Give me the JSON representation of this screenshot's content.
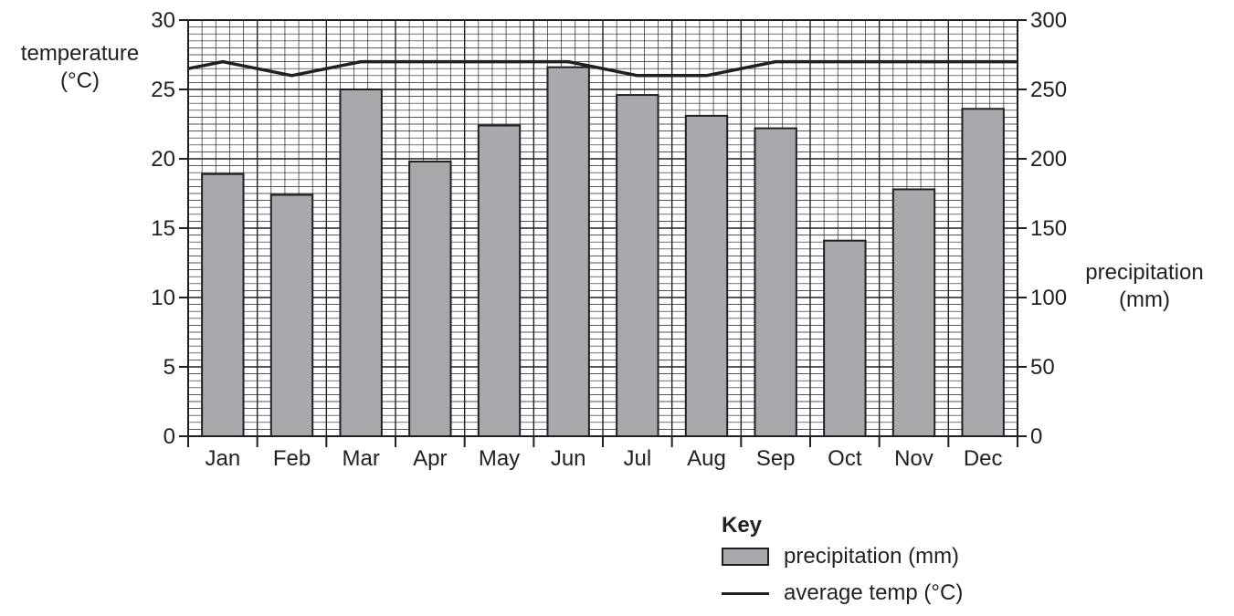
{
  "chart_data": {
    "type": "bar",
    "categories": [
      "Jan",
      "Feb",
      "Mar",
      "Apr",
      "May",
      "Jun",
      "Jul",
      "Aug",
      "Sep",
      "Oct",
      "Nov",
      "Dec"
    ],
    "series": [
      {
        "name": "precipitation (mm)",
        "type": "bar",
        "axis": "right",
        "values": [
          189,
          174,
          250,
          198,
          224,
          266,
          246,
          231,
          222,
          141,
          178,
          236
        ]
      },
      {
        "name": "average temp (°C)",
        "type": "line",
        "axis": "left",
        "values": [
          27,
          26,
          27,
          27,
          27,
          27,
          26,
          26,
          27,
          27,
          27,
          27
        ]
      }
    ],
    "ylabel_left": [
      "temperature",
      "(°C)"
    ],
    "ylabel_right": [
      "precipitation",
      "(mm)"
    ],
    "ylim_left": [
      0,
      30
    ],
    "ylim_right": [
      0,
      300
    ],
    "left_ticks": [
      "0",
      "5",
      "10",
      "15",
      "20",
      "25",
      "30"
    ],
    "right_ticks": [
      "0",
      "50",
      "100",
      "150",
      "200",
      "250",
      "300"
    ],
    "grid": true,
    "legend_title": "Key",
    "legend_position": "bottom-right",
    "colors": {
      "bar": "#a7a9ac",
      "line": "#231f20",
      "grid": "#231f20"
    }
  }
}
